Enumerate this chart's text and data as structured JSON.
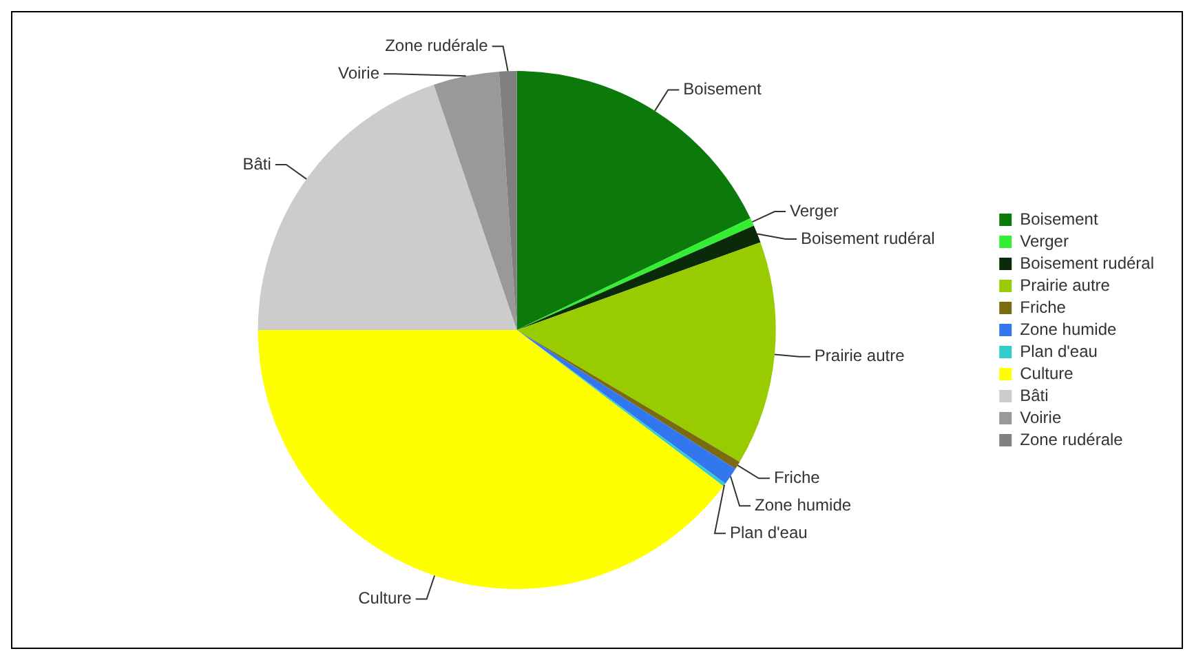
{
  "chart_data": {
    "type": "pie",
    "categories": [
      "Boisement",
      "Verger",
      "Boisement rudéral",
      "Prairie autre",
      "Friche",
      "Zone humide",
      "Plan d'eau",
      "Culture",
      "Bâti",
      "Voirie",
      "Zone rudérale"
    ],
    "values": [
      17.9,
      0.5,
      1.1,
      14.0,
      0.5,
      1.1,
      0.2,
      39.7,
      19.8,
      4.1,
      1.1
    ],
    "colors": [
      "#0b7a0b",
      "#33ee33",
      "#0a2a0a",
      "#99cc00",
      "#7a6a10",
      "#3377ee",
      "#33cccc",
      "#ffff00",
      "#cccccc",
      "#999999",
      "#808080"
    ],
    "legend": "right"
  }
}
